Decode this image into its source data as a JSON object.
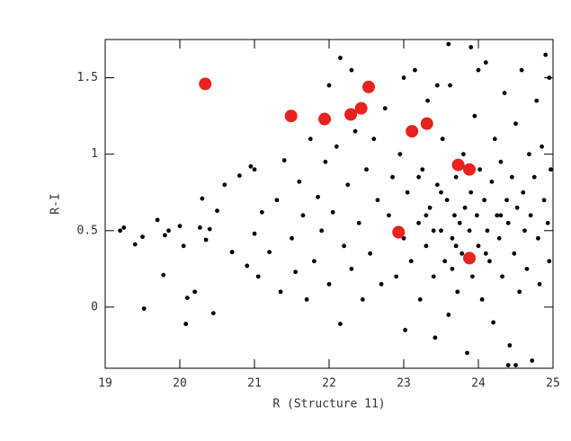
{
  "chart_data": {
    "type": "scatter",
    "x_label": "R (Structure 11)",
    "y_label": "R-I",
    "xlim": [
      19,
      25
    ],
    "ylim": [
      -0.4,
      1.75
    ],
    "xticks": [
      19,
      20,
      21,
      22,
      23,
      24,
      25
    ],
    "yticks": [
      0,
      0.5,
      1,
      1.5
    ],
    "series": [
      {
        "color": "#000000",
        "x": [
          19.2,
          19.25,
          19.4,
          19.5,
          19.52,
          19.7,
          19.78,
          19.8,
          19.85,
          20.0,
          20.05,
          20.08,
          20.1,
          20.2,
          20.27,
          20.3,
          20.35,
          20.4,
          20.45,
          20.5,
          20.6,
          20.7,
          20.8,
          20.9,
          20.95,
          21.0,
          21.05,
          21.1,
          21.2,
          21.3,
          21.35,
          21.4,
          21.5,
          21.55,
          21.6,
          21.65,
          21.7,
          21.75,
          21.8,
          21.85,
          21.9,
          21.95,
          22.0,
          22.05,
          22.1,
          22.15,
          22.2,
          22.25,
          22.3,
          22.35,
          22.4,
          22.45,
          22.5,
          22.55,
          22.6,
          22.65,
          22.7,
          22.75,
          22.8,
          22.85,
          22.9,
          22.95,
          23.0,
          23.02,
          23.05,
          23.1,
          23.15,
          23.2,
          23.22,
          23.25,
          23.3,
          23.32,
          23.35,
          23.4,
          23.42,
          23.45,
          23.5,
          23.52,
          23.55,
          23.58,
          23.6,
          23.62,
          23.65,
          23.68,
          23.7,
          23.72,
          23.75,
          23.78,
          23.8,
          23.82,
          23.85,
          23.88,
          23.9,
          23.92,
          23.95,
          23.98,
          24.0,
          24.02,
          24.05,
          24.08,
          24.1,
          24.12,
          24.15,
          24.18,
          24.2,
          24.22,
          24.25,
          24.28,
          24.3,
          24.32,
          24.35,
          24.38,
          24.4,
          24.42,
          24.45,
          24.48,
          24.5,
          24.52,
          24.55,
          24.58,
          24.6,
          24.62,
          24.65,
          24.68,
          24.7,
          24.72,
          24.75,
          24.78,
          24.8,
          24.82,
          24.85,
          24.88,
          24.9,
          24.93,
          24.95,
          24.97,
          23.6,
          22.15,
          23.9,
          24.5,
          24.4,
          24.95,
          21.0,
          22.0,
          22.3,
          23.0,
          23.45,
          24.0,
          23.65,
          23.3,
          23.7,
          24.1,
          23.5,
          24.3,
          23.4,
          23.2
        ],
        "y": [
          0.5,
          0.52,
          0.41,
          0.46,
          -0.01,
          0.57,
          0.21,
          0.47,
          0.5,
          0.53,
          0.4,
          -0.11,
          0.06,
          0.1,
          0.52,
          0.71,
          0.44,
          0.51,
          -0.04,
          0.63,
          0.8,
          0.36,
          0.86,
          0.27,
          0.92,
          0.48,
          0.2,
          0.62,
          0.36,
          0.7,
          0.1,
          0.96,
          0.45,
          0.23,
          0.82,
          0.6,
          0.05,
          1.1,
          0.3,
          0.72,
          0.5,
          0.95,
          0.15,
          0.62,
          1.05,
          -0.11,
          0.4,
          0.8,
          0.25,
          1.15,
          0.55,
          0.05,
          0.9,
          0.35,
          1.1,
          0.7,
          0.15,
          1.3,
          0.6,
          0.85,
          0.2,
          1.0,
          0.45,
          -0.15,
          0.75,
          0.3,
          1.55,
          0.55,
          0.05,
          0.9,
          0.4,
          1.35,
          0.65,
          0.2,
          -0.2,
          0.8,
          0.5,
          1.1,
          0.3,
          0.7,
          -0.05,
          1.45,
          0.45,
          0.6,
          0.85,
          0.1,
          0.55,
          0.35,
          1.0,
          0.65,
          -0.3,
          0.5,
          0.75,
          0.2,
          1.25,
          0.6,
          0.4,
          0.9,
          0.05,
          0.7,
          1.6,
          0.5,
          0.3,
          0.82,
          -0.1,
          1.1,
          0.6,
          0.45,
          0.95,
          0.2,
          1.4,
          0.7,
          0.55,
          -0.25,
          0.85,
          0.35,
          1.2,
          0.65,
          0.1,
          1.55,
          0.75,
          0.5,
          0.25,
          1.0,
          0.6,
          -0.35,
          0.85,
          1.35,
          0.45,
          0.15,
          1.05,
          0.7,
          1.65,
          0.55,
          0.3,
          0.9,
          1.72,
          1.63,
          1.7,
          -0.38,
          -0.38,
          1.5,
          0.9,
          1.45,
          1.55,
          1.5,
          1.45,
          1.55,
          0.25,
          0.6,
          0.4,
          0.35,
          0.75,
          0.6,
          0.5,
          0.85
        ]
      },
      {
        "color": "#e8221c",
        "x": [
          20.34,
          21.49,
          21.94,
          22.29,
          22.43,
          22.53,
          23.11,
          23.31,
          23.73,
          23.88,
          22.93,
          23.88
        ],
        "y": [
          1.46,
          1.25,
          1.23,
          1.26,
          1.3,
          1.44,
          1.15,
          1.2,
          0.93,
          0.9,
          0.49,
          0.32
        ]
      }
    ]
  }
}
